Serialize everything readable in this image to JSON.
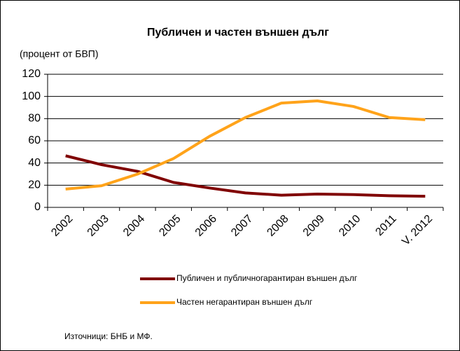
{
  "chart_data": {
    "type": "line",
    "title": "Публичен и частен външен дълг",
    "subtitle": "(процент от БВП)",
    "source": "Източници: БНБ и МФ.",
    "categories": [
      "2002",
      "2003",
      "2004",
      "2005",
      "2006",
      "2007",
      "2008",
      "2009",
      "2010",
      "2011",
      "V. 2012"
    ],
    "series": [
      {
        "name": "Публичен и публичногарантиран външен дълг",
        "color": "#800000",
        "values": [
          46.5,
          38.5,
          32.5,
          22.5,
          17.5,
          13,
          11,
          12,
          11.5,
          10.5,
          10
        ]
      },
      {
        "name": "Частен негарантиран външен дълг",
        "color": "#ffa31a",
        "values": [
          16.5,
          19.5,
          30,
          44,
          64,
          81,
          94,
          96,
          91,
          81,
          79
        ]
      }
    ],
    "ylim": [
      0,
      120
    ],
    "yticks": [
      0,
      20,
      40,
      60,
      80,
      100,
      120
    ],
    "grid": true
  }
}
